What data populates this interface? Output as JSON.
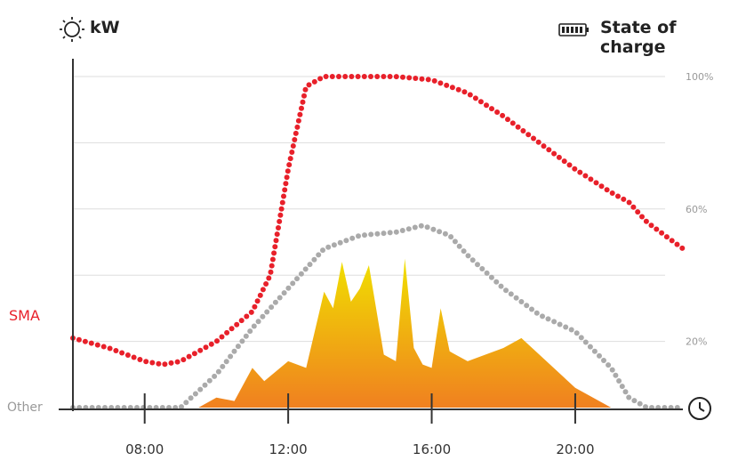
{
  "header": {
    "left_label": "kW",
    "right_label": "State of charge",
    "left_icon": "sun-icon",
    "right_icon": "battery-icon",
    "clock_icon": "clock-icon"
  },
  "chart_data": {
    "type": "line",
    "x_axis": {
      "range": [
        "06:00",
        "23:00"
      ],
      "ticks": [
        "08:00",
        "12:00",
        "16:00",
        "20:00"
      ]
    },
    "y_right_axis": {
      "range": [
        0,
        100
      ],
      "tick_labels": [
        {
          "value": 100,
          "label": "100%"
        },
        {
          "value": 60,
          "label": "60%"
        },
        {
          "value": 20,
          "label": "20%"
        }
      ]
    },
    "grid": true,
    "row_labels": [
      {
        "label": "SMA",
        "color": "#e8202a"
      },
      {
        "label": "Other",
        "color": "#999999"
      }
    ],
    "series": [
      {
        "name": "SMA",
        "kind": "dotted-line",
        "color": "#e8202a",
        "points": [
          [
            "06:00",
            21
          ],
          [
            "07:00",
            18
          ],
          [
            "08:00",
            14
          ],
          [
            "08:30",
            13
          ],
          [
            "09:00",
            14
          ],
          [
            "10:00",
            20
          ],
          [
            "11:00",
            29
          ],
          [
            "11:30",
            40
          ],
          [
            "12:00",
            72
          ],
          [
            "12:30",
            97
          ],
          [
            "13:00",
            100
          ],
          [
            "14:00",
            100
          ],
          [
            "15:00",
            100
          ],
          [
            "16:00",
            99
          ],
          [
            "17:00",
            95
          ],
          [
            "18:00",
            88
          ],
          [
            "19:00",
            80
          ],
          [
            "20:00",
            72
          ],
          [
            "21:00",
            65
          ],
          [
            "21:30",
            62
          ],
          [
            "22:00",
            56
          ],
          [
            "23:00",
            48
          ]
        ]
      },
      {
        "kind": "dotted-line",
        "color": "#aaaaaa",
        "points": [
          [
            "06:00",
            0
          ],
          [
            "07:00",
            0
          ],
          [
            "08:00",
            0
          ],
          [
            "09:00",
            0
          ],
          [
            "10:00",
            10
          ],
          [
            "11:00",
            24
          ],
          [
            "12:00",
            36
          ],
          [
            "13:00",
            48
          ],
          [
            "14:00",
            52
          ],
          [
            "15:00",
            53
          ],
          [
            "15:45",
            55
          ],
          [
            "16:30",
            52
          ],
          [
            "17:00",
            46
          ],
          [
            "18:00",
            36
          ],
          [
            "19:00",
            28
          ],
          [
            "20:00",
            23
          ],
          [
            "21:00",
            12
          ],
          [
            "21:30",
            3
          ],
          [
            "22:00",
            0
          ],
          [
            "23:00",
            0
          ]
        ]
      },
      {
        "kind": "area",
        "gradient": [
          "#f0e000",
          "#f08020"
        ],
        "points": [
          [
            "09:30",
            0
          ],
          [
            "10:00",
            3
          ],
          [
            "10:30",
            2
          ],
          [
            "11:00",
            12
          ],
          [
            "11:20",
            8
          ],
          [
            "12:00",
            14
          ],
          [
            "12:30",
            12
          ],
          [
            "13:00",
            35
          ],
          [
            "13:15",
            30
          ],
          [
            "13:30",
            44
          ],
          [
            "13:45",
            32
          ],
          [
            "14:00",
            36
          ],
          [
            "14:15",
            43
          ],
          [
            "14:40",
            16
          ],
          [
            "15:00",
            14
          ],
          [
            "15:15",
            45
          ],
          [
            "15:30",
            18
          ],
          [
            "15:45",
            13
          ],
          [
            "16:00",
            12
          ],
          [
            "16:15",
            30
          ],
          [
            "16:30",
            17
          ],
          [
            "17:00",
            14
          ],
          [
            "18:00",
            18
          ],
          [
            "18:30",
            21
          ],
          [
            "19:00",
            16
          ],
          [
            "20:00",
            6
          ],
          [
            "21:00",
            0
          ]
        ]
      }
    ]
  }
}
